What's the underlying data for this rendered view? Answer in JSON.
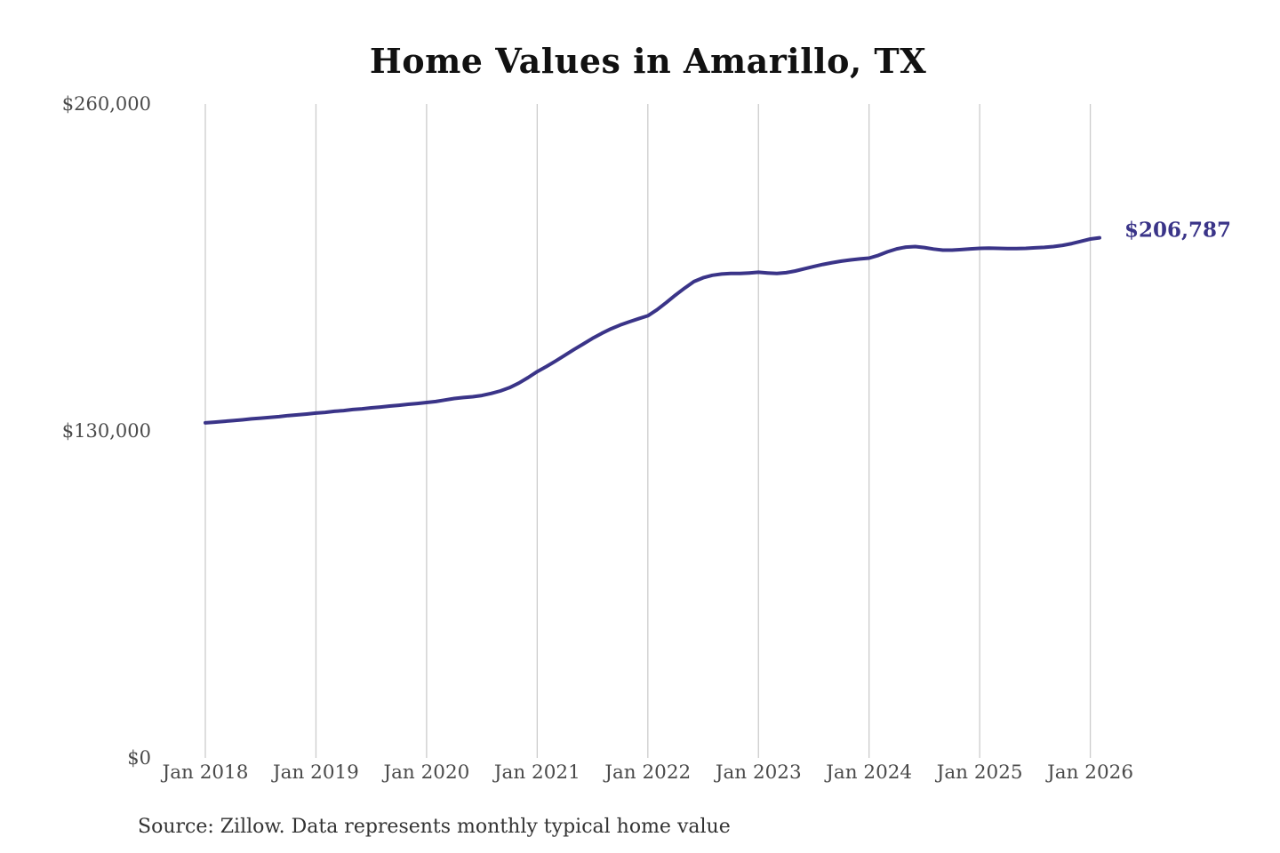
{
  "title": "Home Values in Amarillo, TX",
  "source_note": "Source: Zillow. Data represents monthly typical home value",
  "end_label": "$206,787",
  "colors": {
    "line": "#3a3488",
    "grid": "#cccccc",
    "axis_label": "#4a4a4a",
    "title": "#111111",
    "source": "#333333",
    "background": "#ffffff"
  },
  "chart_data": {
    "type": "line",
    "title": "Home Values in Amarillo, TX",
    "series_name": "Monthly typical home value (USD)",
    "x_monthly_start": "2018-01",
    "x_monthly_end": "2026-02",
    "x_tick_labels": [
      "Jan 2018",
      "Jan 2019",
      "Jan 2020",
      "Jan 2021",
      "Jan 2022",
      "Jan 2023",
      "Jan 2024",
      "Jan 2025",
      "Jan 2026"
    ],
    "y_ticks": [
      {
        "value": 260000,
        "label": "$260,000"
      },
      {
        "value": 130000,
        "label": "$130,000"
      },
      {
        "value": 0,
        "label": "$0"
      }
    ],
    "ylim": [
      0,
      260000
    ],
    "grid": "vertical-only",
    "legend": "none",
    "final_value": 206787,
    "values": [
      133200,
      133500,
      133800,
      134100,
      134400,
      134800,
      135100,
      135400,
      135700,
      136100,
      136400,
      136700,
      137100,
      137400,
      137800,
      138100,
      138500,
      138800,
      139200,
      139500,
      139900,
      140200,
      140600,
      140900,
      141300,
      141700,
      142300,
      142900,
      143300,
      143600,
      144100,
      144900,
      145900,
      147200,
      149000,
      151200,
      153600,
      155600,
      157800,
      160100,
      162400,
      164600,
      166800,
      168800,
      170600,
      172100,
      173400,
      174600,
      175800,
      178200,
      181000,
      184000,
      186800,
      189400,
      190900,
      191900,
      192400,
      192600,
      192600,
      192800,
      193100,
      192800,
      192600,
      192900,
      193600,
      194500,
      195400,
      196200,
      196900,
      197500,
      198000,
      198400,
      198700,
      199800,
      201200,
      202400,
      203100,
      203300,
      202900,
      202300,
      201900,
      201900,
      202100,
      202400,
      202600,
      202700,
      202600,
      202500,
      202500,
      202600,
      202800,
      203000,
      203300,
      203800,
      204500,
      205400,
      206300,
      206787
    ]
  }
}
